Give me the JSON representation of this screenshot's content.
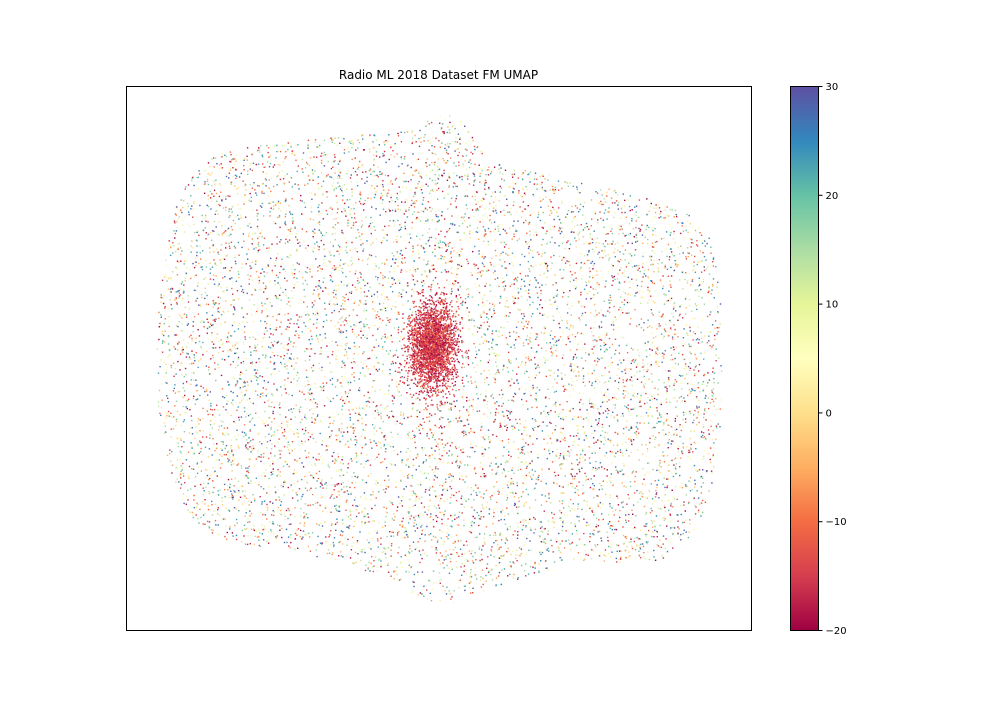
{
  "chart_data": {
    "type": "scatter",
    "title": "Radio ML 2018 Dataset FM UMAP",
    "xlabel": "",
    "ylabel": "",
    "axes_ticks_visible": false,
    "grid": false,
    "colormap": "Spectral",
    "colorbar": {
      "range": [
        -20,
        30
      ],
      "ticks": [
        30,
        20,
        10,
        0,
        -10,
        -20
      ],
      "tick_labels": [
        "30",
        "20",
        "10",
        "0",
        "−10",
        "−20"
      ],
      "placement": "right"
    },
    "colors": {
      "low": "#9e0142",
      "high": "#5e4fa2"
    },
    "clusters": [
      {
        "name": "main cloud",
        "color_value_range": [
          -20,
          30
        ],
        "color_distribution": "uniform"
      },
      {
        "name": "central dense cluster",
        "color_value_range": [
          -20,
          -10
        ],
        "color_distribution": "low SNR"
      }
    ]
  }
}
